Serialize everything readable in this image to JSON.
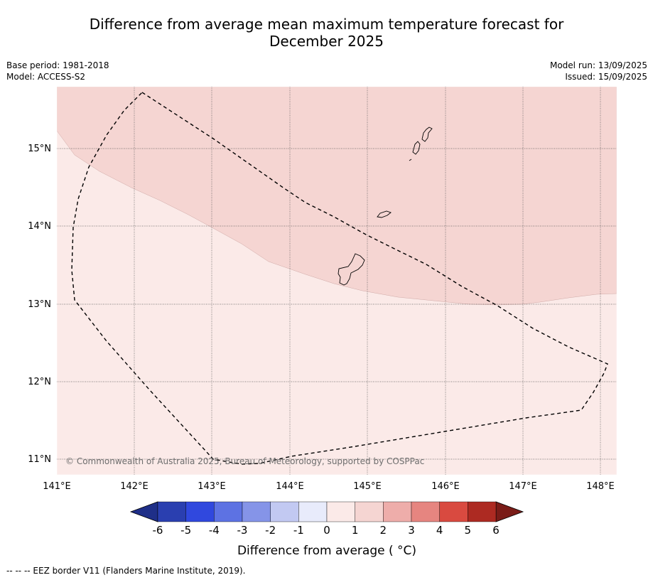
{
  "title": {
    "line1": "Difference from average mean maximum temperature forecast for",
    "line2": "December 2025"
  },
  "meta": {
    "base_period": "Base period: 1981-2018",
    "model": "Model: ACCESS-S2",
    "model_run": "Model run: 13/09/2025",
    "issued": "Issued: 15/09/2025"
  },
  "map": {
    "lon_labels": [
      "141°E",
      "142°E",
      "143°E",
      "144°E",
      "145°E",
      "146°E",
      "147°E",
      "148°E"
    ],
    "lat_labels": [
      "15°N",
      "14°N",
      "13°N",
      "12°N",
      "11°N"
    ],
    "copyright": "© Commonwealth of Australia 2025, Bureau of Meteorology, supported by COSPPac",
    "regions": [
      {
        "category": "1 to 2",
        "color": "#f5d5d2"
      },
      {
        "category": "0 to 1",
        "color": "#fbeae8"
      }
    ]
  },
  "colorbar": {
    "tick_labels": [
      "-6",
      "-5",
      "-4",
      "-3",
      "-2",
      "-1",
      "0",
      "1",
      "2",
      "3",
      "4",
      "5",
      "6"
    ],
    "colors": [
      "#2a3fb0",
      "#3048de",
      "#5d72e3",
      "#8594e8",
      "#c2c9f2",
      "#e8ebfb",
      "#fbeae8",
      "#f5d5d2",
      "#eeadaa",
      "#e68580",
      "#d94a40",
      "#ad2a22"
    ],
    "under_color": "#1f2f88",
    "over_color": "#7a1c18",
    "label": "Difference from average ( °C)"
  },
  "footnote": "--  --  -- EEZ border V11 (Flanders Marine Institute, 2019)."
}
